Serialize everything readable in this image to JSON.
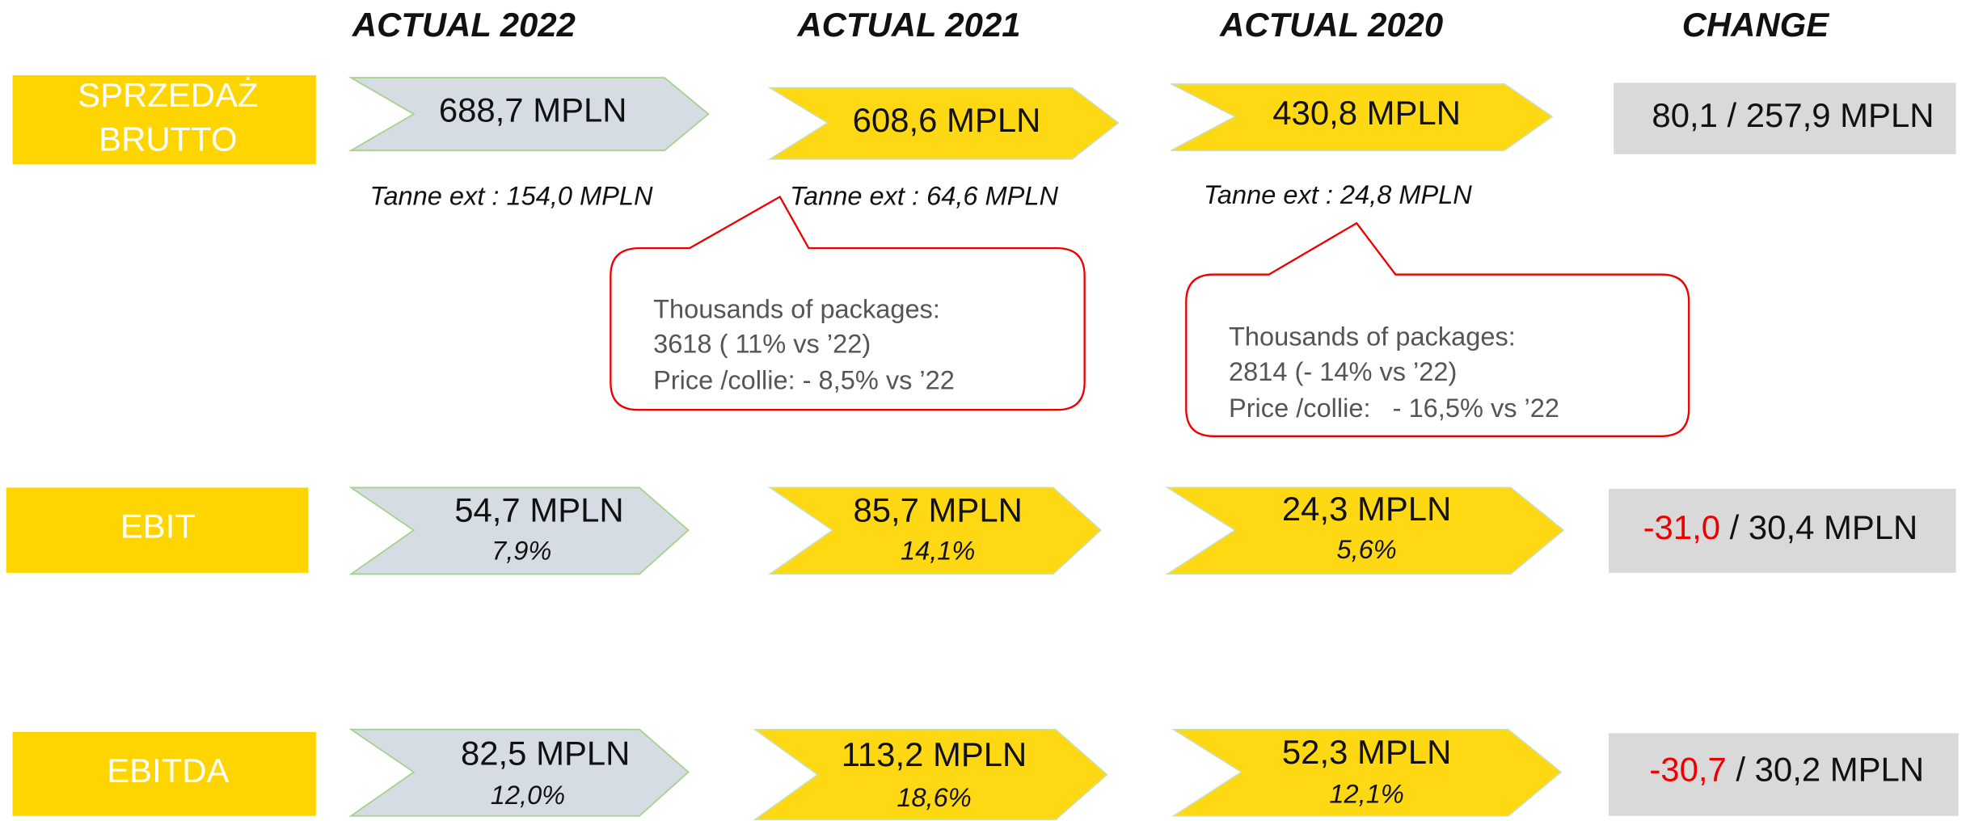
{
  "headers": [
    "ACTUAL 2022",
    "ACTUAL 2021",
    "ACTUAL 2020",
    "CHANGE"
  ],
  "rows": [
    {
      "label": [
        "SPRZEDAŻ",
        "BRUTTO"
      ],
      "values": [
        "688,7 MPLN",
        "608,6 MPLN",
        "430,8 MPLN"
      ],
      "notes": [
        "Tanne ext : 154,0 MPLN",
        "Tanne ext : 64,6 MPLN",
        "Tanne ext : 24,8 MPLN"
      ],
      "change": "80,1 / 257,9 MPLN"
    },
    {
      "label": [
        "EBIT"
      ],
      "values": [
        "54,7 MPLN",
        "85,7 MPLN",
        "24,3 MPLN"
      ],
      "margins": [
        "7,9%",
        "14,1%",
        "5,6%"
      ],
      "change_negative": "-31,0",
      "change_rest": " / 30,4 MPLN"
    },
    {
      "label": [
        "EBITDA"
      ],
      "values": [
        "82,5 MPLN",
        "113,2 MPLN",
        "52,3 MPLN"
      ],
      "margins": [
        "12,0%",
        "18,6%",
        "12,1%"
      ],
      "change_negative": "-30,7",
      "change_rest": " / 30,2 MPLN"
    }
  ],
  "callouts": [
    {
      "lines": [
        "Thousands of packages:",
        "3618 ( 11% vs ’22)",
        "Price /collie: - 8,5% vs ’22"
      ]
    },
    {
      "lines": [
        "Thousands of packages:",
        "2814 (- 14% vs ’22)",
        "Price /collie:   - 16,5% vs ’22"
      ]
    }
  ]
}
